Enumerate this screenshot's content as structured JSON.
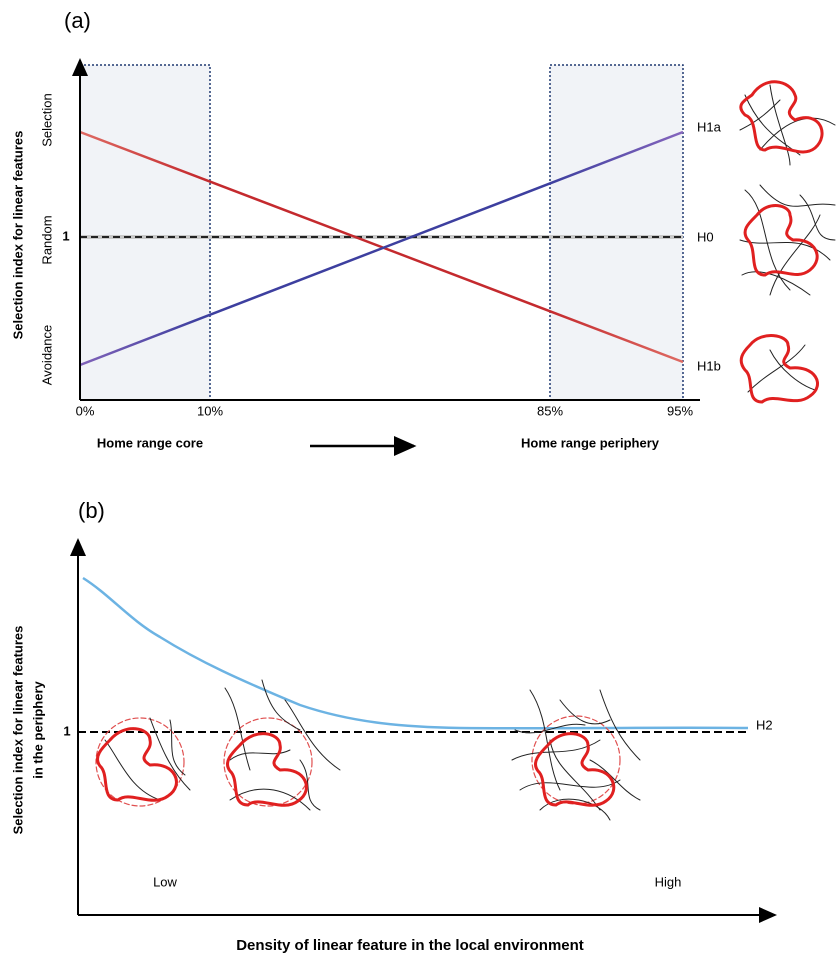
{
  "panel_a": {
    "label": "(a)",
    "y_axis_title": "Selection index for linear features",
    "y_levels": [
      "Selection",
      "Random",
      "Avoidance"
    ],
    "y_reference": "1",
    "x_ticks": [
      "0%",
      "10%",
      "85%",
      "95%"
    ],
    "x_left": "Home range core",
    "x_right": "Home range periphery",
    "hypotheses": [
      "H1a",
      "H0",
      "H1b"
    ]
  },
  "panel_b": {
    "label": "(b)",
    "y_axis_title_lines": [
      "Selection index for linear features",
      "in the periphery"
    ],
    "y_reference": "1",
    "curve_label": "H2",
    "x_low": "Low",
    "x_high": "High",
    "x_axis_title": "Density of linear feature in the local environment"
  }
}
